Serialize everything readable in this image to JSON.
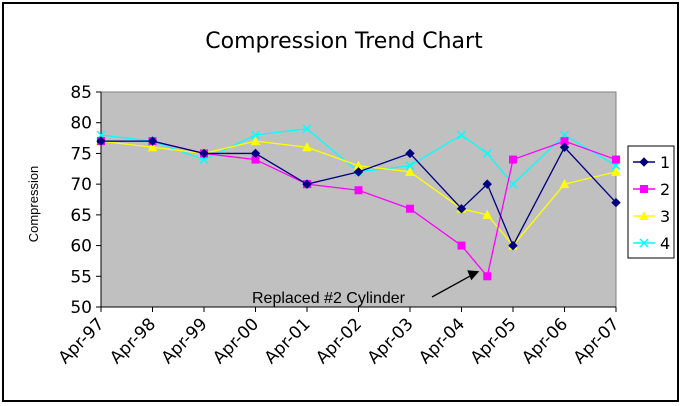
{
  "chart_data": {
    "type": "line",
    "title": "Compression Trend Chart",
    "xlabel": "",
    "ylabel": "Compression",
    "ylim": [
      50,
      85
    ],
    "yticks": [
      50,
      55,
      60,
      65,
      70,
      75,
      80,
      85
    ],
    "xticks": [
      "Apr-97",
      "Apr-98",
      "Apr-99",
      "Apr-00",
      "Apr-01",
      "Apr-02",
      "Apr-03",
      "Apr-04",
      "Apr-05",
      "Apr-06",
      "Apr-07"
    ],
    "x": [
      0,
      1,
      2,
      3,
      4,
      5,
      6,
      7,
      7.5,
      8,
      9,
      10
    ],
    "grid": false,
    "legend_position": "right",
    "series": [
      {
        "name": "1",
        "color": "#000080",
        "marker": "diamond",
        "values": [
          77,
          77,
          75,
          75,
          70,
          72,
          75,
          66,
          70,
          60,
          76,
          67
        ]
      },
      {
        "name": "2",
        "color": "#FF00FF",
        "marker": "square",
        "values": [
          77,
          77,
          75,
          74,
          70,
          69,
          66,
          60,
          55,
          74,
          77,
          74
        ]
      },
      {
        "name": "3",
        "color": "#FFFF00",
        "marker": "triangle",
        "values": [
          77,
          76,
          75,
          77,
          76,
          73,
          72,
          66,
          65,
          60,
          70,
          72
        ]
      },
      {
        "name": "4",
        "color": "#00FFFF",
        "marker": "x",
        "values": [
          78,
          77,
          74,
          78,
          79,
          72,
          73,
          78,
          75,
          70,
          78,
          73
        ]
      }
    ],
    "annotations": [
      {
        "text": "Replaced #2 Cylinder",
        "points_to": {
          "series": "2",
          "x": 7.5,
          "y": 55
        }
      }
    ]
  }
}
